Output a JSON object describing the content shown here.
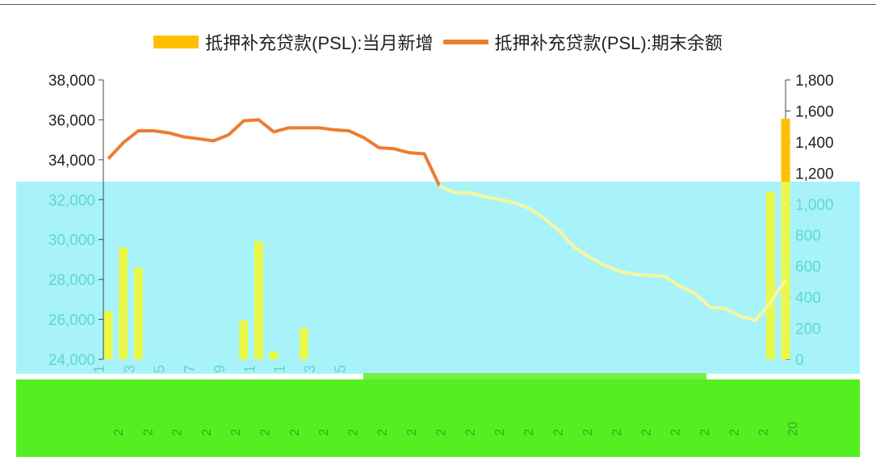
{
  "colors": {
    "bar": "#FFC000",
    "line": "#ED7D31",
    "overlay_cyan": "#A8F3FA",
    "overlay_green": "#55EE22",
    "axis_text": "#222222",
    "axis_text_overlay": "#5FD8C8"
  },
  "legend": {
    "bar_label": "抵押补充贷款(PSL):当月新增",
    "line_label": "抵押补充贷款(PSL):期末余额"
  },
  "chart_data": {
    "type": "bar+line",
    "x_tick_labels_visible": [
      "1",
      "3",
      "5",
      "7",
      "9",
      "1",
      "1",
      "3",
      "5"
    ],
    "x_bottom_row_visible": [
      "2",
      "2",
      "2",
      "2",
      "2",
      "2",
      "2",
      "2",
      "2",
      "2",
      "2",
      "2",
      "2",
      "2",
      "2",
      "2",
      "2",
      "2",
      "2",
      "2",
      "2",
      "2",
      "2",
      "20"
    ],
    "left_axis": {
      "ticks": [
        "24,000",
        "26,000",
        "28,000",
        "30,000",
        "32,000",
        "34,000",
        "36,000",
        "38,000"
      ],
      "min": 24000,
      "max": 38000
    },
    "right_axis": {
      "ticks": [
        "0",
        "200",
        "400",
        "600",
        "800",
        "1,000",
        "1,200",
        "1,400",
        "1,600",
        "1,800"
      ],
      "min": 0,
      "max": 1800
    },
    "series": [
      {
        "name": "抵押补充贷款(PSL):当月新增",
        "type": "bar",
        "axis": "right",
        "values": [
          310,
          720,
          590,
          0,
          0,
          0,
          0,
          0,
          0,
          250,
          760,
          50,
          0,
          200,
          0,
          0,
          0,
          0,
          0,
          0,
          0,
          0,
          0,
          0,
          0,
          0,
          0,
          0,
          0,
          0,
          0,
          0,
          0,
          0,
          0,
          0,
          0,
          0,
          0,
          0,
          0,
          0,
          0,
          0,
          1080,
          1550
        ]
      },
      {
        "name": "抵押补充贷款(PSL):期末余额",
        "type": "line",
        "axis": "left",
        "values": [
          34050,
          34850,
          35450,
          35450,
          35350,
          35150,
          35050,
          34950,
          35250,
          35950,
          36000,
          35400,
          35600,
          35600,
          35600,
          35500,
          35450,
          35100,
          34600,
          34550,
          34350,
          34300,
          32700,
          32350,
          32350,
          32150,
          32000,
          31850,
          31550,
          31050,
          30400,
          29600,
          29100,
          28700,
          28400,
          28250,
          28200,
          28150,
          27650,
          27300,
          26600,
          26550,
          26150,
          25950,
          26850,
          28000
        ]
      }
    ]
  }
}
